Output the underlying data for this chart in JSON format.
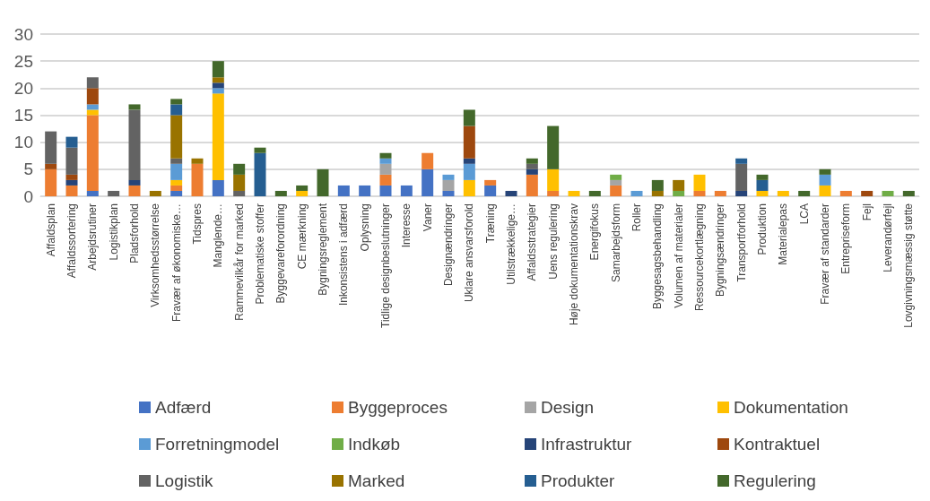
{
  "chart_data": {
    "type": "bar",
    "stacked": true,
    "categories": [
      "Affaldsplan",
      "Affaldssortering",
      "Arbejdsrutiner",
      "Logistikplan",
      "Pladsforhold",
      "Virksomhedsstørrelse",
      "Fravær af økonomiske…",
      "Tidspres",
      "Manglende…",
      "Rammevilkår for marked",
      "Problematiske stoffer",
      "Byggevareforordning",
      "CE mærkning",
      "Bygningsreglement",
      "Inkonsistens i adfærd",
      "Oplysning",
      "Tidlige designbeslutninger",
      "Interesse",
      "Vaner",
      "Designændringer",
      "Uklare ansvarsforold",
      "Træning",
      "Utilstrækkelige…",
      "Affaldsstrategier",
      "Uens regulering",
      "Høje dokumentationskrav",
      "Energifokus",
      "Samarbejdsform",
      "Roller",
      "Byggesagsbehandling",
      "Volumen af materialer",
      "Ressourcekortlægning",
      "Bygningsændringer",
      "Transportforhold",
      "Produktion",
      "Materialepas",
      "LCA",
      "Fravær af standarder",
      "Entrepriseform",
      "Fejl",
      "Leverandørfejl",
      "Lovgivningsmæssig støtte"
    ],
    "series": [
      {
        "name": "Adfærd",
        "color": "#4472c4",
        "values": [
          0,
          0,
          1,
          0,
          0,
          0,
          1,
          0,
          3,
          0,
          0,
          0,
          0,
          0,
          2,
          2,
          2,
          2,
          5,
          1,
          0,
          2,
          0,
          0,
          0,
          0,
          0,
          0,
          0,
          0,
          0,
          0,
          0,
          0,
          0,
          0,
          0,
          0,
          0,
          0,
          0,
          0
        ]
      },
      {
        "name": "Byggeproces",
        "color": "#ed7d31",
        "values": [
          5,
          2,
          14,
          0,
          2,
          0,
          1,
          6,
          0,
          0,
          0,
          0,
          0,
          0,
          0,
          0,
          2,
          0,
          3,
          0,
          0,
          1,
          0,
          4,
          1,
          0,
          0,
          2,
          0,
          0,
          0,
          1,
          1,
          0,
          0,
          0,
          0,
          0,
          1,
          0,
          0,
          0
        ]
      },
      {
        "name": "Design",
        "color": "#a5a5a5",
        "values": [
          0,
          0,
          0,
          0,
          0,
          0,
          0,
          0,
          0,
          0,
          0,
          0,
          0,
          0,
          0,
          0,
          2,
          0,
          0,
          2,
          0,
          0,
          0,
          0,
          0,
          0,
          0,
          1,
          0,
          0,
          0,
          0,
          0,
          0,
          0,
          0,
          0,
          0,
          0,
          0,
          0,
          0
        ]
      },
      {
        "name": "Dokumentation",
        "color": "#ffc000",
        "values": [
          0,
          0,
          1,
          0,
          0,
          0,
          1,
          0,
          16,
          0,
          0,
          0,
          1,
          0,
          0,
          0,
          0,
          0,
          0,
          0,
          3,
          0,
          0,
          0,
          4,
          1,
          0,
          0,
          0,
          0,
          0,
          3,
          0,
          0,
          1,
          1,
          0,
          2,
          0,
          0,
          0,
          0
        ]
      },
      {
        "name": "Forretningmodel",
        "color": "#5b9bd5",
        "values": [
          0,
          0,
          1,
          0,
          0,
          0,
          3,
          0,
          1,
          0,
          0,
          0,
          0,
          0,
          0,
          0,
          1,
          0,
          0,
          1,
          3,
          0,
          0,
          0,
          0,
          0,
          0,
          0,
          1,
          0,
          0,
          0,
          0,
          0,
          0,
          0,
          0,
          2,
          0,
          0,
          0,
          0
        ]
      },
      {
        "name": "Indkøb",
        "color": "#70ad47",
        "values": [
          0,
          0,
          0,
          0,
          0,
          0,
          0,
          0,
          0,
          0,
          0,
          0,
          0,
          0,
          0,
          0,
          0,
          0,
          0,
          0,
          0,
          0,
          0,
          0,
          0,
          0,
          0,
          1,
          0,
          0,
          1,
          0,
          0,
          0,
          0,
          0,
          0,
          0,
          0,
          0,
          1,
          0
        ]
      },
      {
        "name": "Infrastruktur",
        "color": "#264478",
        "values": [
          0,
          1,
          0,
          0,
          1,
          0,
          0,
          0,
          1,
          0,
          0,
          0,
          0,
          0,
          0,
          0,
          0,
          0,
          0,
          0,
          1,
          0,
          1,
          1,
          0,
          0,
          0,
          0,
          0,
          0,
          0,
          0,
          0,
          1,
          0,
          0,
          0,
          0,
          0,
          0,
          0,
          0
        ]
      },
      {
        "name": "Kontraktuel",
        "color": "#9e480e",
        "values": [
          1,
          1,
          3,
          0,
          0,
          0,
          0,
          0,
          0,
          0,
          0,
          0,
          0,
          0,
          0,
          0,
          0,
          0,
          0,
          0,
          6,
          0,
          0,
          0,
          0,
          0,
          0,
          0,
          0,
          0,
          0,
          0,
          0,
          0,
          0,
          0,
          0,
          0,
          0,
          1,
          0,
          0
        ]
      },
      {
        "name": "Logistik",
        "color": "#636363",
        "values": [
          6,
          5,
          2,
          1,
          13,
          0,
          1,
          0,
          0,
          1,
          0,
          0,
          0,
          0,
          0,
          0,
          0,
          0,
          0,
          0,
          0,
          0,
          0,
          1,
          0,
          0,
          0,
          0,
          0,
          0,
          0,
          0,
          0,
          5,
          0,
          0,
          0,
          0,
          0,
          0,
          0,
          0
        ]
      },
      {
        "name": "Marked",
        "color": "#997300",
        "values": [
          0,
          0,
          0,
          0,
          0,
          1,
          8,
          1,
          1,
          3,
          0,
          0,
          0,
          0,
          0,
          0,
          0,
          0,
          0,
          0,
          0,
          0,
          0,
          0,
          0,
          0,
          0,
          0,
          0,
          1,
          2,
          0,
          0,
          0,
          0,
          0,
          0,
          0,
          0,
          0,
          0,
          0
        ]
      },
      {
        "name": "Produkter",
        "color": "#255e91",
        "values": [
          0,
          2,
          0,
          0,
          0,
          0,
          2,
          0,
          0,
          0,
          8,
          0,
          0,
          0,
          0,
          0,
          0,
          0,
          0,
          0,
          0,
          0,
          0,
          0,
          0,
          0,
          0,
          0,
          0,
          0,
          0,
          0,
          0,
          1,
          2,
          0,
          0,
          0,
          0,
          0,
          0,
          0
        ]
      },
      {
        "name": "Regulering",
        "color": "#43682b",
        "values": [
          0,
          0,
          0,
          0,
          1,
          0,
          1,
          0,
          3,
          2,
          1,
          1,
          1,
          5,
          0,
          0,
          1,
          0,
          0,
          0,
          3,
          0,
          0,
          1,
          8,
          0,
          1,
          0,
          0,
          2,
          0,
          0,
          0,
          0,
          1,
          0,
          1,
          1,
          0,
          0,
          0,
          1
        ]
      }
    ],
    "ylim": [
      0,
      30
    ],
    "yticks": [
      0,
      5,
      10,
      15,
      20,
      25,
      30
    ],
    "grid": "y",
    "legend": "bottom"
  }
}
